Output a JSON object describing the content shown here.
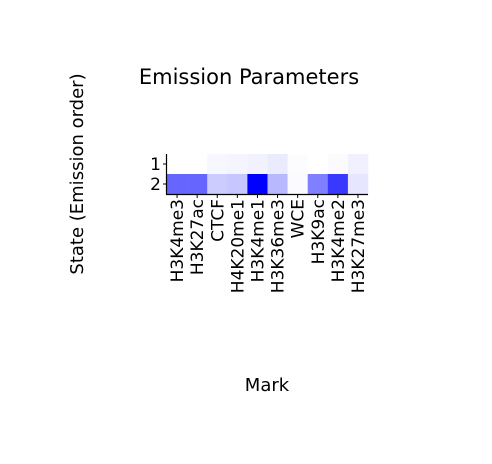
{
  "chart_data": {
    "type": "heatmap",
    "title": "Emission Parameters",
    "xlabel": "Mark",
    "ylabel": "State (Emission order)",
    "x_categories": [
      "H3K4me3",
      "H3K27ac",
      "CTCF",
      "H4K20me1",
      "H3K4me1",
      "H3K36me3",
      "WCE",
      "H3K9ac",
      "H3K4me2",
      "H3K27me3"
    ],
    "y_categories": [
      "1",
      "2"
    ],
    "values": [
      [
        0.0,
        0.0,
        0.03,
        0.04,
        0.05,
        0.08,
        0.01,
        0.0,
        0.02,
        0.06
      ],
      [
        0.6,
        0.6,
        0.2,
        0.22,
        1.0,
        0.28,
        0.02,
        0.5,
        0.78,
        0.1
      ]
    ],
    "vmin": 0,
    "vmax": 1,
    "colormap": {
      "low": "#ffffff",
      "high": "#0000ff"
    },
    "grid": false,
    "legend": "none"
  }
}
